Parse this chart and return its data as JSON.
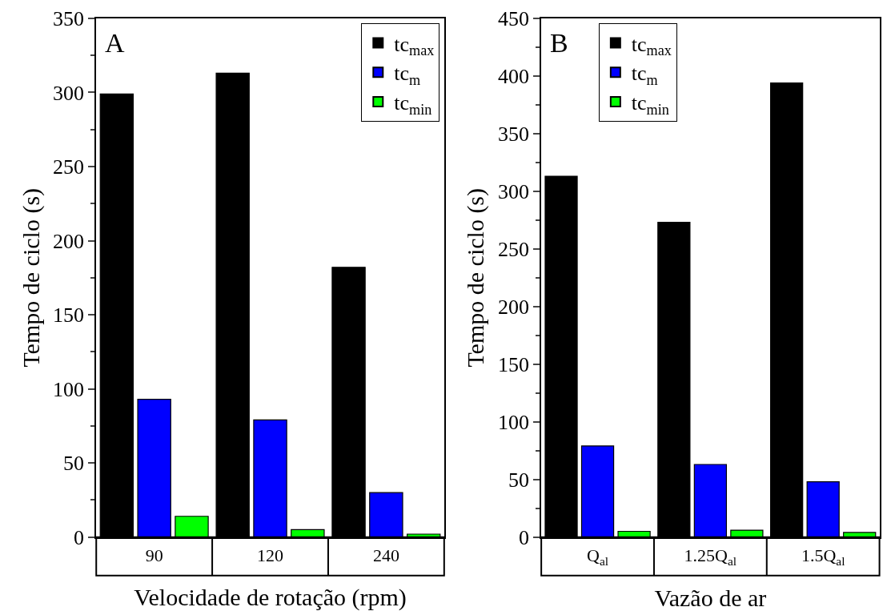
{
  "chart_data": [
    {
      "type": "bar",
      "annotations": [
        "A"
      ],
      "xlabel": "Velocidade de rotação (rpm)",
      "ylabel": "Tempo de ciclo (s)",
      "categories": [
        "90",
        "120",
        "240"
      ],
      "ylim": [
        0,
        350
      ],
      "yticks": [
        0,
        50,
        100,
        150,
        200,
        250,
        300,
        350
      ],
      "legend": "top right",
      "series": [
        {
          "name": "tc$_{max}$",
          "color": "#000000",
          "values": [
            299,
            313,
            182
          ]
        },
        {
          "name": "tc$_{m}$",
          "color": "#0000ff",
          "values": [
            93,
            79,
            30
          ]
        },
        {
          "name": "tc$_{min}$",
          "color": "#00ff00",
          "values": [
            14,
            5,
            2
          ]
        }
      ]
    },
    {
      "type": "bar",
      "annotations": [
        "B"
      ],
      "xlabel": "Vazão de ar",
      "ylabel": "Tempo de ciclo (s)",
      "categories": [
        "Q$_{al}$",
        "1.25Q$_{al}$",
        "1.5Q$_{al}$"
      ],
      "ylim": [
        0,
        450
      ],
      "yticks": [
        0,
        50,
        100,
        150,
        200,
        250,
        300,
        350,
        400,
        450
      ],
      "legend": "top left",
      "series": [
        {
          "name": "tc$_{max}$",
          "color": "#000000",
          "values": [
            313,
            273,
            394
          ]
        },
        {
          "name": "tc$_{m}$",
          "color": "#0000ff",
          "values": [
            79,
            63,
            48
          ]
        },
        {
          "name": "tc$_{min}$",
          "color": "#00ff00",
          "values": [
            5,
            6,
            4
          ]
        }
      ]
    }
  ]
}
